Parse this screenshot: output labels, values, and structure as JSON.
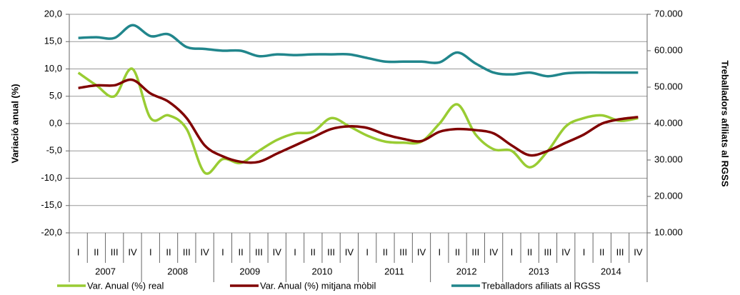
{
  "chart_data": {
    "type": "line",
    "categories": [
      "I",
      "II",
      "III",
      "IV",
      "I",
      "II",
      "III",
      "IV",
      "I",
      "II",
      "III",
      "IV",
      "I",
      "II",
      "III",
      "IV",
      "I",
      "II",
      "III",
      "IV",
      "I",
      "II",
      "III",
      "IV",
      "I",
      "II",
      "III",
      "IV",
      "I",
      "II",
      "III",
      "IV"
    ],
    "years": [
      "2007",
      "2008",
      "2009",
      "2010",
      "2011",
      "2012",
      "2013",
      "2014"
    ],
    "ylabel": "Variació anual (%)",
    "y2label": "Treballadors afiliats al RGSS",
    "ylim": [
      -20,
      20
    ],
    "yticks": [
      {
        "value": -20,
        "label": "-20,0"
      },
      {
        "value": -15,
        "label": "-15,0"
      },
      {
        "value": -10,
        "label": "-10,0"
      },
      {
        "value": -5,
        "label": "-5,0"
      },
      {
        "value": 0,
        "label": "0,0"
      },
      {
        "value": 5,
        "label": "5,0"
      },
      {
        "value": 10,
        "label": "10,0"
      },
      {
        "value": 15,
        "label": "15,0"
      },
      {
        "value": 20,
        "label": "20,0"
      }
    ],
    "y2lim": [
      10000,
      70000
    ],
    "y2ticks": [
      {
        "value": 10000,
        "label": "10.000"
      },
      {
        "value": 20000,
        "label": "20.000"
      },
      {
        "value": 30000,
        "label": "30.000"
      },
      {
        "value": 40000,
        "label": "40.000"
      },
      {
        "value": 50000,
        "label": "50.000"
      },
      {
        "value": 60000,
        "label": "60.000"
      },
      {
        "value": 70000,
        "label": "70.000"
      }
    ],
    "grid": true,
    "legend": "bottom",
    "series": [
      {
        "name": "Var. Anual (%) real",
        "color": "#99cc33",
        "values": [
          9.3,
          7,
          5,
          10,
          1,
          1.5,
          -1,
          -9,
          -6.5,
          -7.2,
          -5,
          -3,
          -1.8,
          -1.5,
          1,
          -0.5,
          -2.2,
          -3.3,
          -3.5,
          -3.3,
          0,
          3.5,
          -2,
          -4.7,
          -5,
          -8,
          -5,
          -0.5,
          1,
          1.5,
          0.5,
          1
        ]
      },
      {
        "name": "Var. Anual (%) mitjana mòbil",
        "color": "#800000",
        "values": [
          6.5,
          7,
          7,
          8,
          5.5,
          4,
          1,
          -4,
          -6,
          -7,
          -7,
          -5.5,
          -4,
          -2.5,
          -1,
          -0.5,
          -0.8,
          -2,
          -2.8,
          -3.2,
          -1.5,
          -1,
          -1.2,
          -1.8,
          -4,
          -5.8,
          -5,
          -3.5,
          -2,
          0,
          0.8,
          1.2
        ]
      },
      {
        "name": "Treballadors afiliats al RGSS",
        "color": "#21868c",
        "axis": "y2",
        "values": [
          63500,
          63700,
          63500,
          67000,
          64000,
          64500,
          61000,
          60500,
          60000,
          60000,
          58500,
          59000,
          58800,
          59000,
          59000,
          59000,
          58000,
          57000,
          57000,
          57000,
          56800,
          59500,
          56500,
          54000,
          53500,
          54000,
          53000,
          53800,
          54000,
          54000,
          54000,
          54000
        ]
      }
    ]
  }
}
